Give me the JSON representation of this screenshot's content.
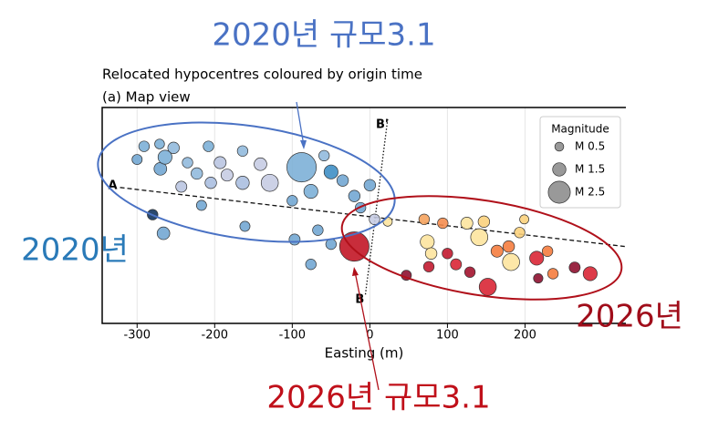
{
  "chart_data": {
    "type": "scatter",
    "title": "Relocated hypocentres coloured by origin time",
    "subtitle": "(a) Map view",
    "x_label": "Easting (m)",
    "xlim": [
      -345,
      330
    ],
    "ylim": [
      -138,
      140
    ],
    "xticks": [
      -300,
      -200,
      -100,
      0,
      100,
      200
    ],
    "grid": true,
    "x": [
      -291,
      -271,
      -253,
      -300,
      -270,
      -264,
      -235,
      -208,
      -223,
      -243,
      -205,
      -184,
      -164,
      -193,
      -164,
      -141,
      -129,
      -88,
      -50,
      -76,
      -35,
      -20,
      0,
      -12,
      6,
      -97,
      -67,
      -50,
      -76,
      -161,
      -266,
      -280,
      -100,
      -217,
      -59,
      -20,
      23,
      47,
      70,
      94,
      74,
      79,
      100,
      125,
      141,
      147,
      111,
      129,
      152,
      164,
      182,
      179,
      193,
      215,
      229,
      236,
      264,
      284,
      76,
      199,
      217
    ],
    "y": [
      90,
      93,
      88,
      73,
      61,
      76,
      69,
      90,
      55,
      38,
      43,
      53,
      84,
      69,
      43,
      67,
      43,
      63,
      57,
      32,
      46,
      26,
      40,
      11,
      -4,
      -30,
      -18,
      -36,
      -62,
      -13,
      -22,
      2,
      20,
      14,
      78,
      -39,
      -7,
      -76,
      -4,
      -9,
      -33,
      -48,
      -48,
      -9,
      -27,
      -7,
      -62,
      -72,
      -91,
      -45,
      -59,
      -39,
      -21,
      -54,
      -45,
      -74,
      -66,
      -74,
      -65,
      -4,
      -80
    ],
    "sizes": [
      1.0,
      0.8,
      1.2,
      0.9,
      1.4,
      1.6,
      1.0,
      1.0,
      1.2,
      1.1,
      1.2,
      1.3,
      1.0,
      1.3,
      1.5,
      1.4,
      2.0,
      3.1,
      1.6,
      1.6,
      1.2,
      1.2,
      1.2,
      1.0,
      1.0,
      1.1,
      1.0,
      1.0,
      1.0,
      0.9,
      1.4,
      1.0,
      1.0,
      0.9,
      1.0,
      3.1,
      0.6,
      0.9,
      1.0,
      1.0,
      1.6,
      1.2,
      1.0,
      1.3,
      2.0,
      1.2,
      1.1,
      1.0,
      2.0,
      1.3,
      2.0,
      1.2,
      1.0,
      1.6,
      1.0,
      1.0,
      1.1,
      1.6,
      1.0,
      0.6,
      0.7
    ],
    "colors": [
      "#7aaed6",
      "#7aaed6",
      "#8fb8dc",
      "#6fa5d2",
      "#6fa5d2",
      "#7aaed6",
      "#8fb8dc",
      "#7aaed6",
      "#8fb8dc",
      "#b8c4e0",
      "#a9bddf",
      "#c5cbe3",
      "#8fb8dc",
      "#b8c4e0",
      "#a9bddf",
      "#c5cbe3",
      "#c5cbe3",
      "#7aaed6",
      "#3a8cc4",
      "#7aaed6",
      "#6fa5d2",
      "#6fa5d2",
      "#6fa5d2",
      "#6fa5d2",
      "#c5cbe3",
      "#6fa5d2",
      "#6fa5d2",
      "#6fa5d2",
      "#6fa5d2",
      "#6fa5d2",
      "#6fa5d2",
      "#0b2f5a",
      "#6fa5d2",
      "#6fa5d2",
      "#8fb8dc",
      "#c01020",
      "#fde49c",
      "#8b0a2a",
      "#f5a05a",
      "#f58a4a",
      "#fde49c",
      "#fde49c",
      "#c0142a",
      "#fde49c",
      "#fde49c",
      "#fbd07a",
      "#d82030",
      "#a00d28",
      "#d82030",
      "#f57a3a",
      "#fde49c",
      "#f57a3a",
      "#fbd07a",
      "#d82030",
      "#f57a3a",
      "#f57a3a",
      "#8b0a2a",
      "#d82030",
      "#c0142a",
      "#fbd07a",
      "#8b0a2a"
    ],
    "sections": [
      {
        "labels": [
          "A"
        ],
        "x": [
          -322,
          329
        ],
        "y": [
          37,
          -39
        ],
        "style": "dashed"
      },
      {
        "labels": [
          "B'",
          "B"
        ],
        "x": [
          23,
          -6
        ],
        "y": [
          125,
          -103
        ],
        "style": "dotted"
      }
    ],
    "size_legend": {
      "title": "Magnitude",
      "entries": [
        {
          "value": 0.5,
          "label": "M 0.5"
        },
        {
          "value": 1.5,
          "label": "M 1.5"
        },
        {
          "value": 2.5,
          "label": "M 2.5"
        }
      ]
    }
  },
  "annotations": {
    "top": "2020년 규모3.1",
    "left": "2020년",
    "right": "2026년",
    "bottom": "2026년 규모3.1"
  }
}
